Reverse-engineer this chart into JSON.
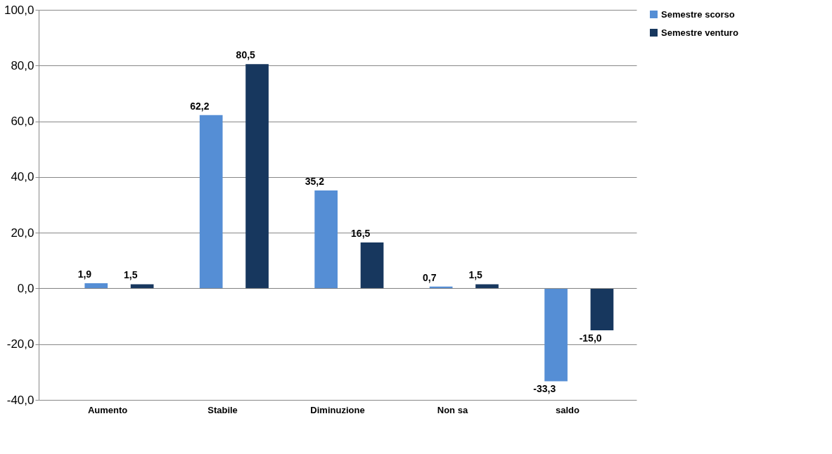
{
  "chart_data": {
    "type": "bar",
    "categories": [
      "Aumento",
      "Stabile",
      "Diminuzione",
      "Non sa",
      "saldo"
    ],
    "series": [
      {
        "name": "Semestre scorso",
        "color": "#558ed5",
        "values": [
          1.9,
          62.2,
          35.2,
          0.7,
          -33.3
        ],
        "value_labels": [
          "1,9",
          "62,2",
          "35,2",
          "0,7",
          "-33,3"
        ]
      },
      {
        "name": "Semestre venturo",
        "color": "#17375e",
        "values": [
          1.5,
          80.5,
          16.5,
          1.5,
          -15.0
        ],
        "value_labels": [
          "1,5",
          "80,5",
          "16,5",
          "1,5",
          "-15,0"
        ]
      }
    ],
    "ylim": [
      -40,
      100
    ],
    "yticks": [
      {
        "value": -40,
        "label": "-40,0"
      },
      {
        "value": -20,
        "label": "-20,0"
      },
      {
        "value": 0,
        "label": "0,0"
      },
      {
        "value": 20,
        "label": "20,0"
      },
      {
        "value": 40,
        "label": "40,0"
      },
      {
        "value": 60,
        "label": "60,0"
      },
      {
        "value": 80,
        "label": "80,0"
      },
      {
        "value": 100,
        "label": "100,0"
      }
    ],
    "grid": "y",
    "legend": "right"
  }
}
